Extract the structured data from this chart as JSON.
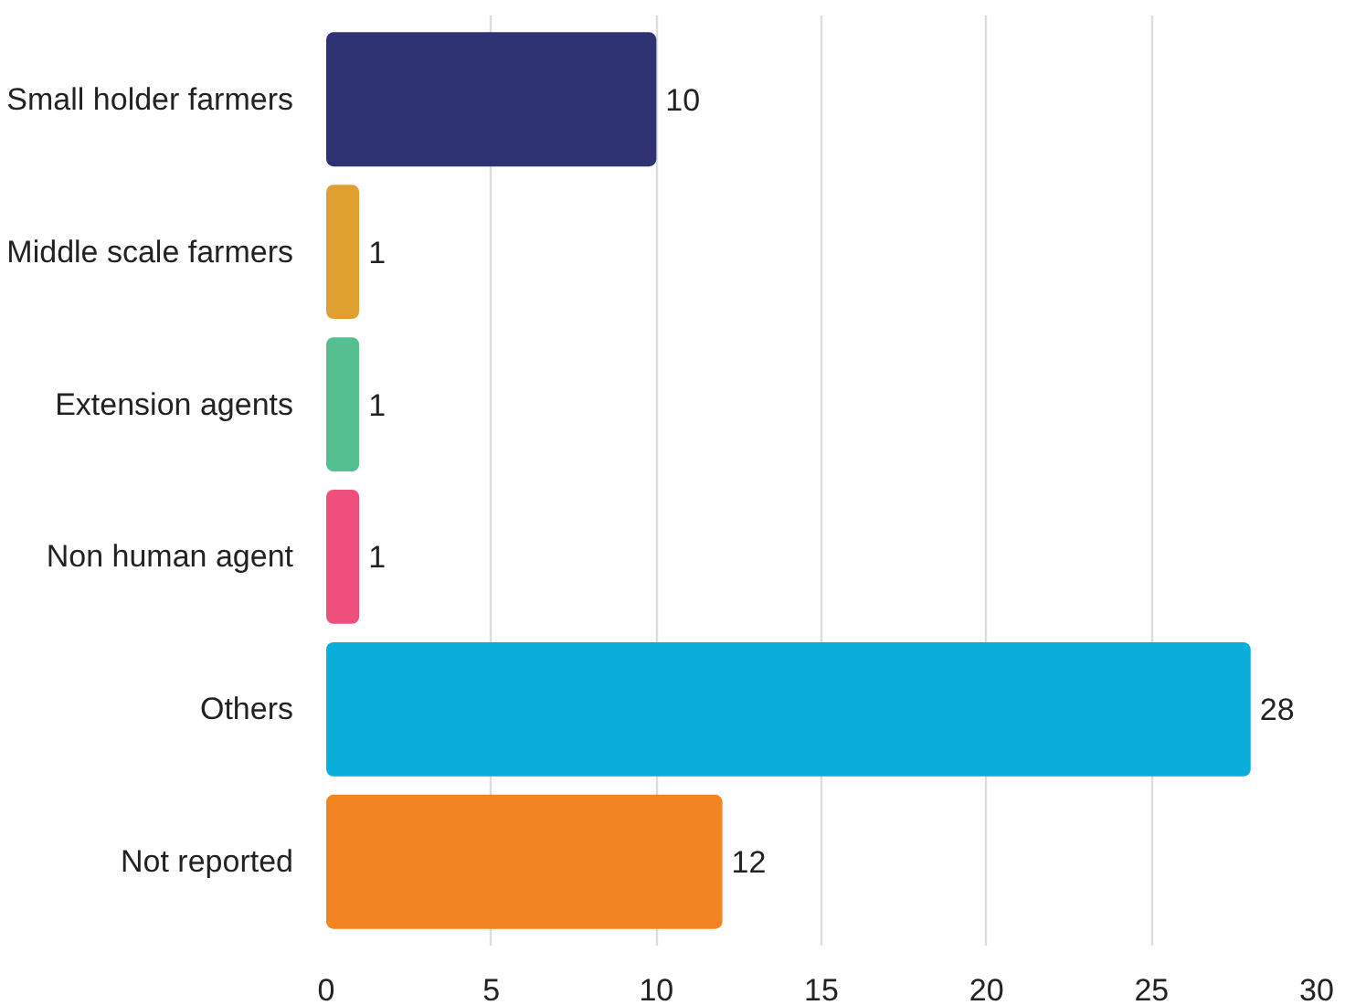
{
  "chart_data": {
    "type": "bar",
    "orientation": "horizontal",
    "categories": [
      "Small holder farmers",
      "Middle scale farmers",
      "Extension agents",
      "Non human agent",
      "Others",
      "Not reported"
    ],
    "values": [
      10,
      1,
      1,
      1,
      28,
      12
    ],
    "colors": [
      "#2e3172",
      "#e0a030",
      "#55c08f",
      "#ef4f7d",
      "#0aaedb",
      "#f28522"
    ],
    "xlim": [
      0,
      30
    ],
    "xticks": [
      0,
      5,
      10,
      15,
      20,
      25,
      30
    ],
    "grid": "x",
    "data_labels": true
  }
}
